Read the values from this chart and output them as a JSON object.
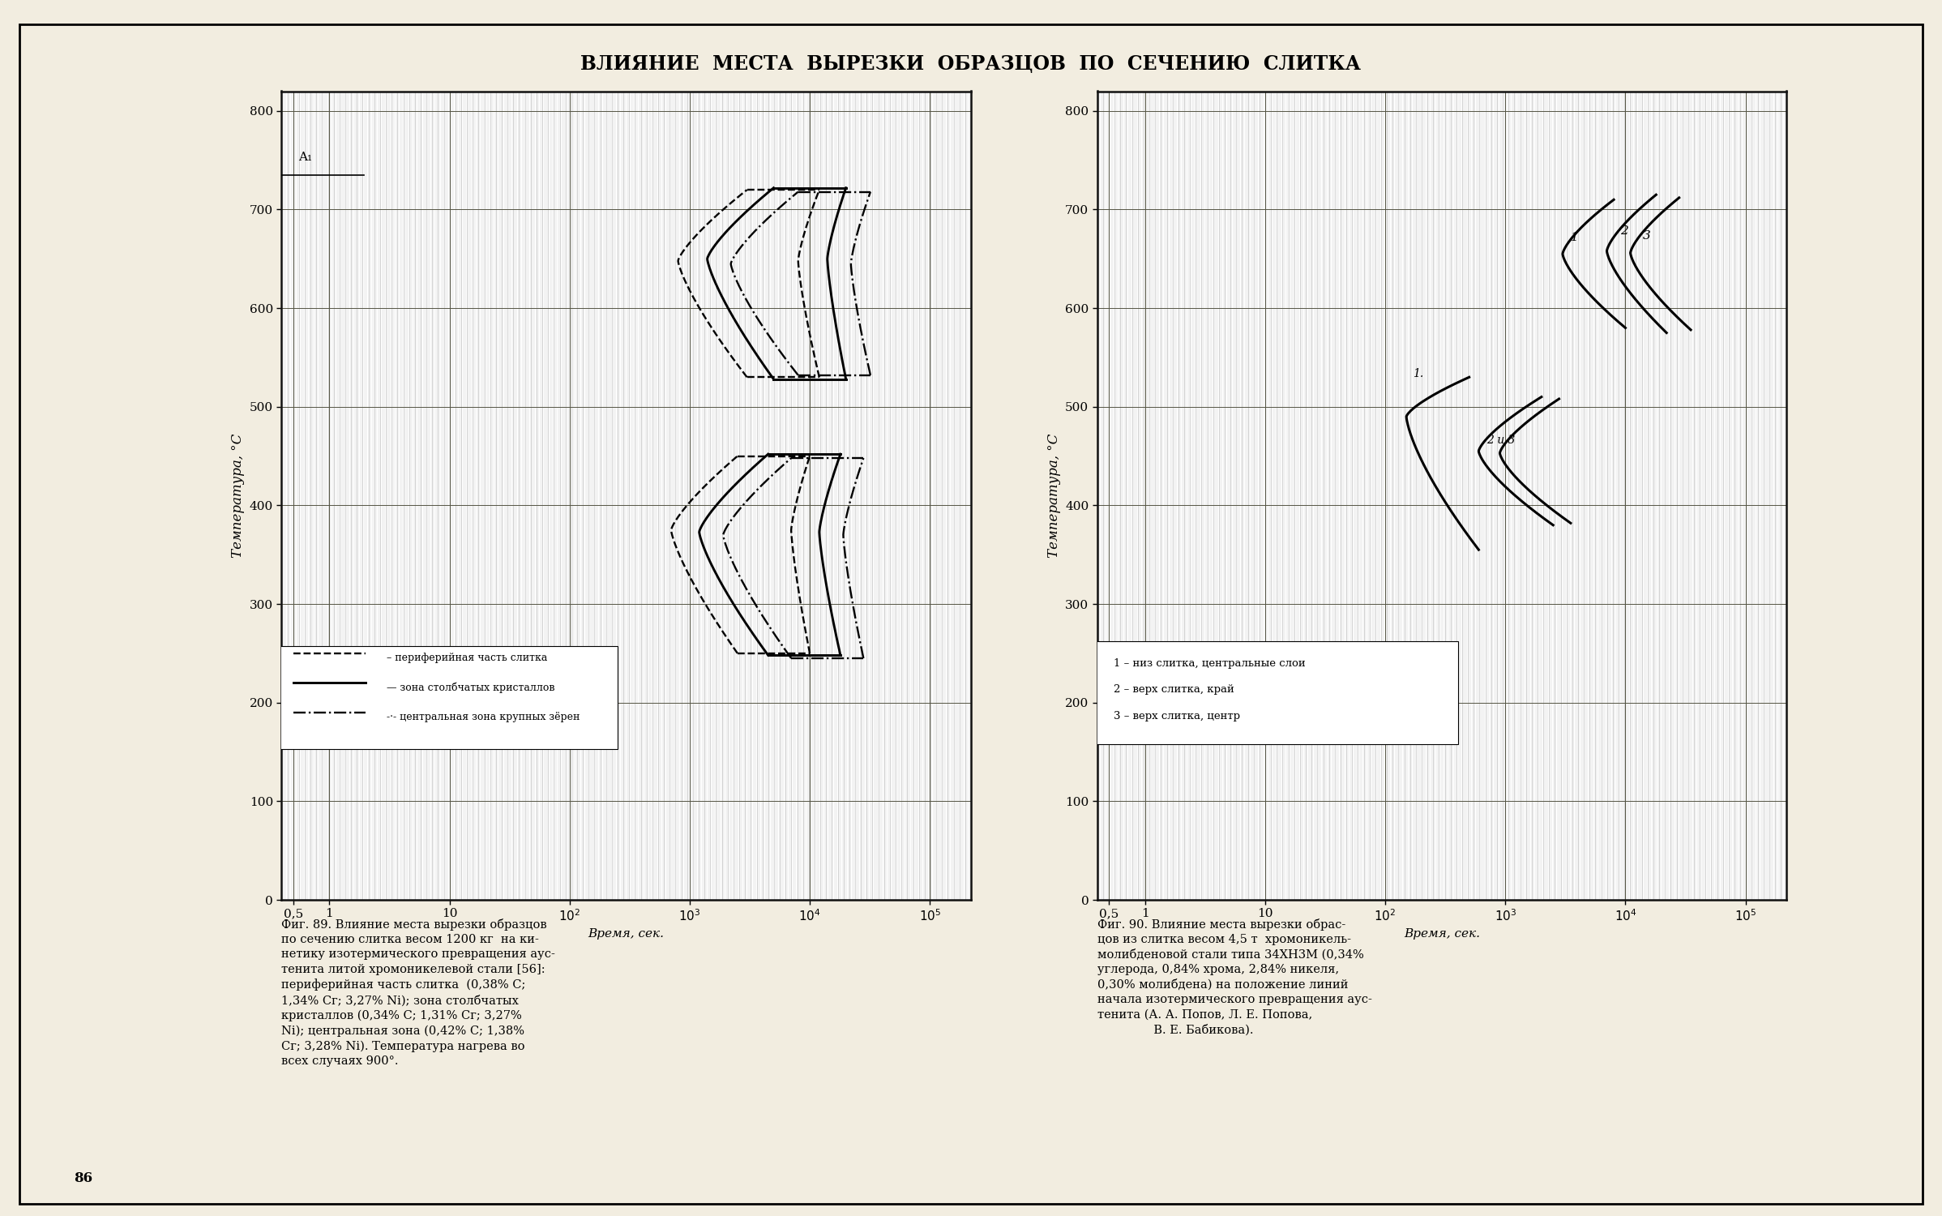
{
  "title": "ВЛИЯНИЕ  МЕСТА  ВЫРЕЗКИ  ОБРАЗЦОВ  ПО  СЕЧЕНИЮ  СЛИТКА",
  "ylabel": "Температура, °С",
  "xlabel": "Время, сек.",
  "page_number": "86",
  "bg_color": "#f2ede0",
  "plot_bg": "#ffffff",
  "A1_temp": 750,
  "caption_left_lines": [
    "Фиг. 89. Влияние места вырезки образцов",
    "по сечению слитка весом 1200 кг  на ки-",
    "нетику изотермического превращения аус-",
    "тенита литой хромоникелевой стали [56]:",
    "периферийная часть слитка  (0,38% С;",
    "1,34% Сг; 3,27% Ni); зона столбчатых",
    "кристаллов (0,34% С; 1,31% Сг; 3,27%",
    "Ni); центральная зона (0,42% С; 1,38%",
    "Сг; 3,28% Ni). Температура нагрева во",
    "всех случаях 900°."
  ],
  "caption_right_lines": [
    "Фиг. 90. Влияние места вырезки обраc-",
    "цов из слитка весом 4,5 т  хромоникель-",
    "молибденовой стали типа 34ХН3М (0,34%",
    "углерода, 0,84% хрома, 2,84% никеля,",
    "0,30% молибдена) на положение линий",
    "начала изотермического превращения аус-",
    "тенита (А. А. Попов, Л. Е. Попова,",
    "               В. Е. Бабикова)."
  ]
}
